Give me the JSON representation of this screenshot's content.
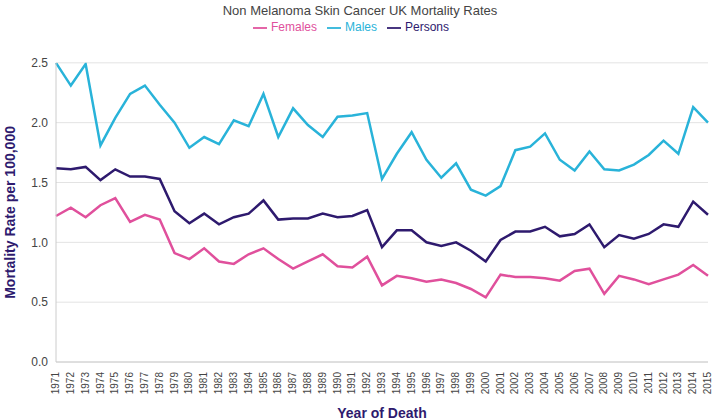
{
  "chart_data": {
    "type": "line",
    "title": "Non Melanoma Skin Cancer UK Mortality Rates",
    "x_label": "Year of Death",
    "y_label": "Mortality Rate per 100,000",
    "categories": [
      "1971",
      "1972",
      "1973",
      "1974",
      "1975",
      "1976",
      "1977",
      "1978",
      "1979",
      "1980",
      "1981",
      "1982",
      "1983",
      "1984",
      "1985",
      "1986",
      "1987",
      "1988",
      "1989",
      "1990",
      "1991",
      "1992",
      "1993",
      "1994",
      "1995",
      "1996",
      "1997",
      "1998",
      "1999",
      "2000",
      "2001",
      "2002",
      "2003",
      "2004",
      "2005",
      "2006",
      "2007",
      "2008",
      "2009",
      "2010",
      "2011",
      "2012",
      "2013",
      "2014",
      "2015"
    ],
    "series": [
      {
        "name": "Females",
        "color": "#e0509c",
        "values": [
          1.22,
          1.29,
          1.21,
          1.31,
          1.37,
          1.17,
          1.23,
          1.19,
          0.91,
          0.86,
          0.95,
          0.84,
          0.82,
          0.9,
          0.95,
          0.86,
          0.78,
          0.84,
          0.9,
          0.8,
          0.79,
          0.88,
          0.64,
          0.72,
          0.7,
          0.67,
          0.69,
          0.66,
          0.61,
          0.54,
          0.73,
          0.71,
          0.71,
          0.7,
          0.68,
          0.76,
          0.78,
          0.57,
          0.72,
          0.69,
          0.65,
          0.69,
          0.73,
          0.81,
          0.72
        ]
      },
      {
        "name": "Males",
        "color": "#29b3d9",
        "values": [
          2.5,
          2.31,
          2.49,
          1.81,
          2.04,
          2.24,
          2.31,
          2.15,
          2.0,
          1.79,
          1.88,
          1.82,
          2.02,
          1.97,
          2.24,
          1.88,
          2.12,
          1.98,
          1.88,
          2.05,
          2.06,
          2.08,
          1.53,
          1.74,
          1.92,
          1.69,
          1.54,
          1.66,
          1.44,
          1.39,
          1.47,
          1.77,
          1.8,
          1.91,
          1.69,
          1.6,
          1.76,
          1.61,
          1.6,
          1.65,
          1.73,
          1.85,
          1.74,
          2.13,
          2.0
        ]
      },
      {
        "name": "Persons",
        "color": "#2e1a6e",
        "values": [
          1.62,
          1.61,
          1.63,
          1.52,
          1.61,
          1.55,
          1.55,
          1.53,
          1.26,
          1.16,
          1.24,
          1.15,
          1.21,
          1.24,
          1.35,
          1.19,
          1.2,
          1.2,
          1.24,
          1.21,
          1.22,
          1.27,
          0.96,
          1.1,
          1.1,
          1.0,
          0.97,
          1.0,
          0.93,
          0.84,
          1.02,
          1.09,
          1.09,
          1.13,
          1.05,
          1.07,
          1.15,
          0.96,
          1.06,
          1.03,
          1.07,
          1.15,
          1.13,
          1.34,
          1.23
        ]
      }
    ],
    "ylim": [
      0,
      2.5
    ],
    "yticks": [
      {
        "value": 0,
        "label": "0.0"
      },
      0.5,
      {
        "value": 1,
        "label": "1.0"
      },
      1.5,
      {
        "value": 2,
        "label": "2.0"
      },
      2.5
    ],
    "grid": true,
    "legend": "top"
  }
}
